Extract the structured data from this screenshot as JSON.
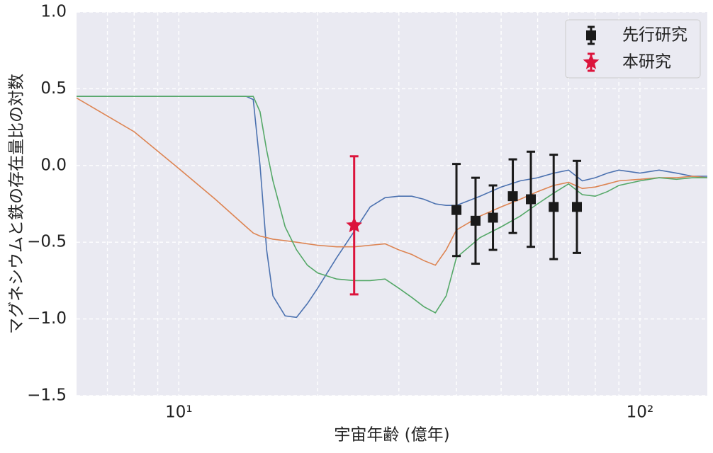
{
  "chart_data": {
    "type": "line",
    "xlabel": "宇宙年齢 (億年)",
    "ylabel": "マグネシウムと鉄の存在量比の対数",
    "xscale": "log",
    "grid": true,
    "legend": "upper right",
    "xlim": [
      6,
      140
    ],
    "ylim": [
      -1.5,
      1.0
    ],
    "xticks": [
      {
        "value": 10,
        "label": "10¹"
      },
      {
        "value": 100,
        "label": "10²"
      }
    ],
    "xminorticks": [
      7,
      8,
      9,
      20,
      30,
      40,
      50,
      60,
      70,
      80,
      90
    ],
    "yticks": [
      {
        "value": 1.0,
        "label": "1.0"
      },
      {
        "value": 0.5,
        "label": "0.5"
      },
      {
        "value": 0,
        "label": "0.0"
      },
      {
        "value": -0.5,
        "label": "−0.5"
      },
      {
        "value": -1.0,
        "label": "−1.0"
      },
      {
        "value": -1.5,
        "label": "−1.5"
      }
    ],
    "x": [
      6,
      8,
      10,
      12,
      14,
      14.5,
      15,
      15.5,
      16,
      17,
      18,
      19,
      20,
      22,
      24,
      26,
      28,
      30,
      32,
      34,
      36,
      38,
      40,
      45,
      50,
      55,
      60,
      65,
      70,
      75,
      80,
      85,
      90,
      100,
      110,
      120,
      130,
      140
    ],
    "series": [
      {
        "color": "#4c72b0",
        "values": [
          0.45,
          0.45,
          0.45,
          0.45,
          0.45,
          0.43,
          0.0,
          -0.55,
          -0.85,
          -0.98,
          -0.99,
          -0.9,
          -0.8,
          -0.6,
          -0.43,
          -0.27,
          -0.21,
          -0.2,
          -0.2,
          -0.22,
          -0.25,
          -0.26,
          -0.26,
          -0.2,
          -0.14,
          -0.1,
          -0.08,
          -0.05,
          -0.03,
          -0.1,
          -0.08,
          -0.05,
          -0.03,
          -0.05,
          -0.03,
          -0.05,
          -0.07,
          -0.07
        ]
      },
      {
        "color": "#dd8452",
        "values": [
          0.44,
          0.22,
          -0.02,
          -0.22,
          -0.4,
          -0.44,
          -0.46,
          -0.47,
          -0.48,
          -0.49,
          -0.5,
          -0.51,
          -0.52,
          -0.53,
          -0.53,
          -0.52,
          -0.51,
          -0.55,
          -0.58,
          -0.62,
          -0.65,
          -0.55,
          -0.42,
          -0.33,
          -0.27,
          -0.22,
          -0.17,
          -0.13,
          -0.11,
          -0.15,
          -0.14,
          -0.12,
          -0.1,
          -0.09,
          -0.08,
          -0.08,
          -0.07,
          -0.08
        ]
      },
      {
        "color": "#55a868",
        "values": [
          0.45,
          0.45,
          0.45,
          0.45,
          0.45,
          0.45,
          0.35,
          0.1,
          -0.1,
          -0.4,
          -0.55,
          -0.65,
          -0.7,
          -0.74,
          -0.75,
          -0.75,
          -0.74,
          -0.8,
          -0.86,
          -0.92,
          -0.96,
          -0.85,
          -0.6,
          -0.47,
          -0.4,
          -0.33,
          -0.25,
          -0.18,
          -0.12,
          -0.19,
          -0.2,
          -0.17,
          -0.13,
          -0.1,
          -0.08,
          -0.09,
          -0.08,
          -0.08
        ]
      }
    ],
    "points": [
      {
        "name": "先行研究",
        "marker": "square",
        "color": "#1a1a1a",
        "x": [
          40,
          44,
          48,
          53,
          58,
          65,
          73
        ],
        "values": [
          -0.29,
          -0.36,
          -0.34,
          -0.2,
          -0.22,
          -0.27,
          -0.27
        ],
        "errors": [
          0.3,
          0.28,
          0.21,
          0.24,
          0.31,
          0.34,
          0.3
        ]
      },
      {
        "name": "本研究",
        "marker": "star",
        "color": "#dc143c",
        "x": [
          24
        ],
        "values": [
          -0.39
        ],
        "errors": [
          0.45
        ]
      }
    ]
  }
}
